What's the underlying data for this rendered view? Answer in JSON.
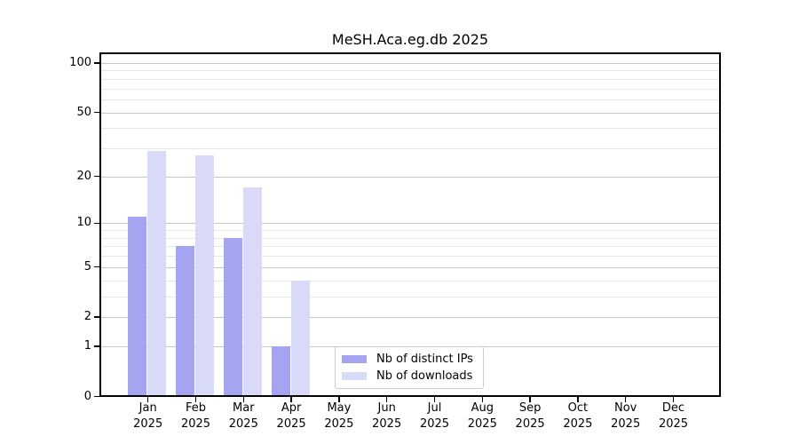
{
  "title": "MeSH.Aca.eg.db 2025",
  "chart_data": {
    "type": "bar",
    "title": "MeSH.Aca.eg.db 2025",
    "categories": [
      "Jan",
      "Feb",
      "Mar",
      "Apr",
      "May",
      "Jun",
      "Jul",
      "Aug",
      "Sep",
      "Oct",
      "Nov",
      "Dec"
    ],
    "category_year": "2025",
    "series": [
      {
        "name": "Nb of distinct IPs",
        "color": "#a4a4f0",
        "values": [
          11,
          7,
          8,
          1,
          0,
          0,
          0,
          0,
          0,
          0,
          0,
          0
        ]
      },
      {
        "name": "Nb of downloads",
        "color": "#d9d9f8",
        "values": [
          29,
          27,
          17,
          4,
          0,
          0,
          0,
          0,
          0,
          0,
          0,
          0
        ]
      }
    ],
    "xlabel": "",
    "ylabel": "",
    "y_scale": "log1p",
    "ylim": [
      0,
      113
    ],
    "y_ticks": [
      0,
      1,
      2,
      5,
      10,
      20,
      50,
      100
    ],
    "y_minor_gridlines": [
      3,
      4,
      6,
      7,
      8,
      9,
      30,
      40,
      60,
      70,
      80,
      90
    ],
    "grid": "horizontal",
    "legend_position": "bottom-center",
    "colors": {
      "major_gridline": "#c6c6c6",
      "minor_gridline": "#e7e7e7",
      "axis": "#000000",
      "background": "#ffffff",
      "legend_border": "#cccccc"
    }
  }
}
